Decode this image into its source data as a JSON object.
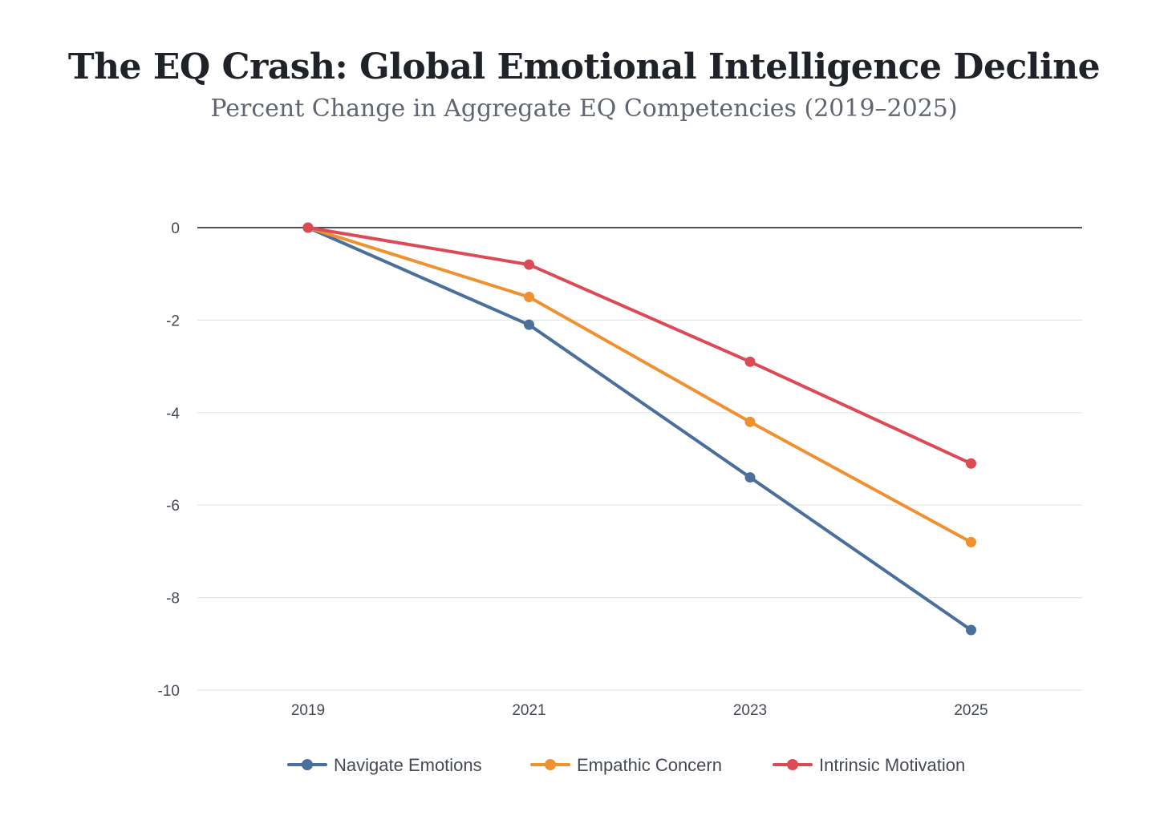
{
  "chart_data": {
    "type": "line",
    "title": "The EQ Crash: Global Emotional Intelligence Decline",
    "subtitle": "Percent Change in Aggregate EQ Competencies (2019–2025)",
    "xlabel": "",
    "ylabel": "",
    "x": [
      "2019",
      "2021",
      "2023",
      "2025"
    ],
    "ylim": [
      -10,
      0
    ],
    "yticks": [
      0,
      -2,
      -4,
      -6,
      -8,
      -10
    ],
    "grid": true,
    "legend_position": "bottom-center",
    "series": [
      {
        "name": "Navigate Emotions",
        "color": "#4a6f9c",
        "values": [
          0,
          -2.1,
          -5.4,
          -8.7
        ]
      },
      {
        "name": "Empathic Concern",
        "color": "#ef9131",
        "values": [
          0,
          -1.5,
          -4.2,
          -6.8
        ]
      },
      {
        "name": "Intrinsic Motivation",
        "color": "#dc4b55",
        "values": [
          0,
          -0.8,
          -2.9,
          -5.1
        ]
      }
    ]
  }
}
